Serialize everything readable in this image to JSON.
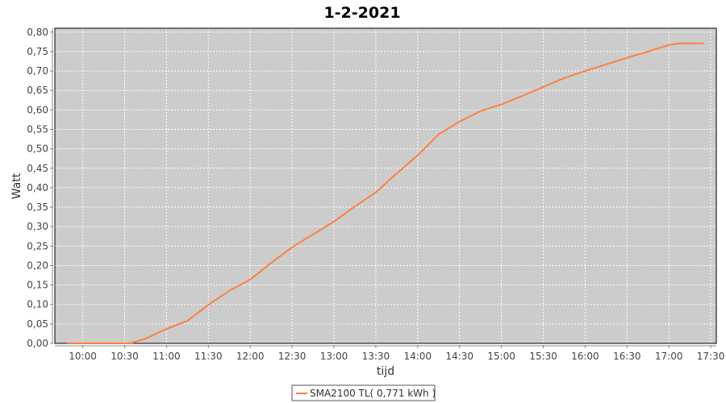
{
  "chart_data": {
    "type": "line",
    "title": "1-2-2021",
    "xlabel": "tijd",
    "ylabel": "Watt",
    "xlim": [
      "09:40",
      "17:34"
    ],
    "ylim": [
      0,
      0.81
    ],
    "x_ticks": [
      "10:00",
      "10:30",
      "11:00",
      "11:30",
      "12:00",
      "12:30",
      "13:00",
      "13:30",
      "14:00",
      "14:30",
      "15:00",
      "15:30",
      "16:00",
      "16:30",
      "17:00",
      "17:30"
    ],
    "y_ticks": [
      "0,00",
      "0,05",
      "0,10",
      "0,15",
      "0,20",
      "0,25",
      "0,30",
      "0,35",
      "0,40",
      "0,45",
      "0,50",
      "0,55",
      "0,60",
      "0,65",
      "0,70",
      "0,75",
      "0,80"
    ],
    "grid": true,
    "legend_placement": "bottom",
    "background": "#cccccc",
    "series": [
      {
        "name": "SMA2100 TL( 0,771 kWh )",
        "color": "#ff7f3f",
        "x": [
          "09:49",
          "10:34",
          "10:45",
          "11:00",
          "11:15",
          "11:30",
          "11:45",
          "12:00",
          "12:05",
          "12:15",
          "12:30",
          "12:45",
          "13:00",
          "13:15",
          "13:30",
          "13:45",
          "14:00",
          "14:15",
          "14:30",
          "14:45",
          "15:00",
          "15:15",
          "15:30",
          "15:45",
          "16:00",
          "16:15",
          "16:30",
          "16:45",
          "17:00",
          "17:08",
          "17:25"
        ],
        "y": [
          0.0,
          0.0,
          0.012,
          0.037,
          0.058,
          0.099,
          0.135,
          0.164,
          0.178,
          0.207,
          0.247,
          0.28,
          0.313,
          0.352,
          0.388,
          0.437,
          0.483,
          0.537,
          0.57,
          0.597,
          0.614,
          0.636,
          0.659,
          0.682,
          0.7,
          0.717,
          0.734,
          0.75,
          0.767,
          0.771,
          0.771
        ]
      }
    ]
  }
}
